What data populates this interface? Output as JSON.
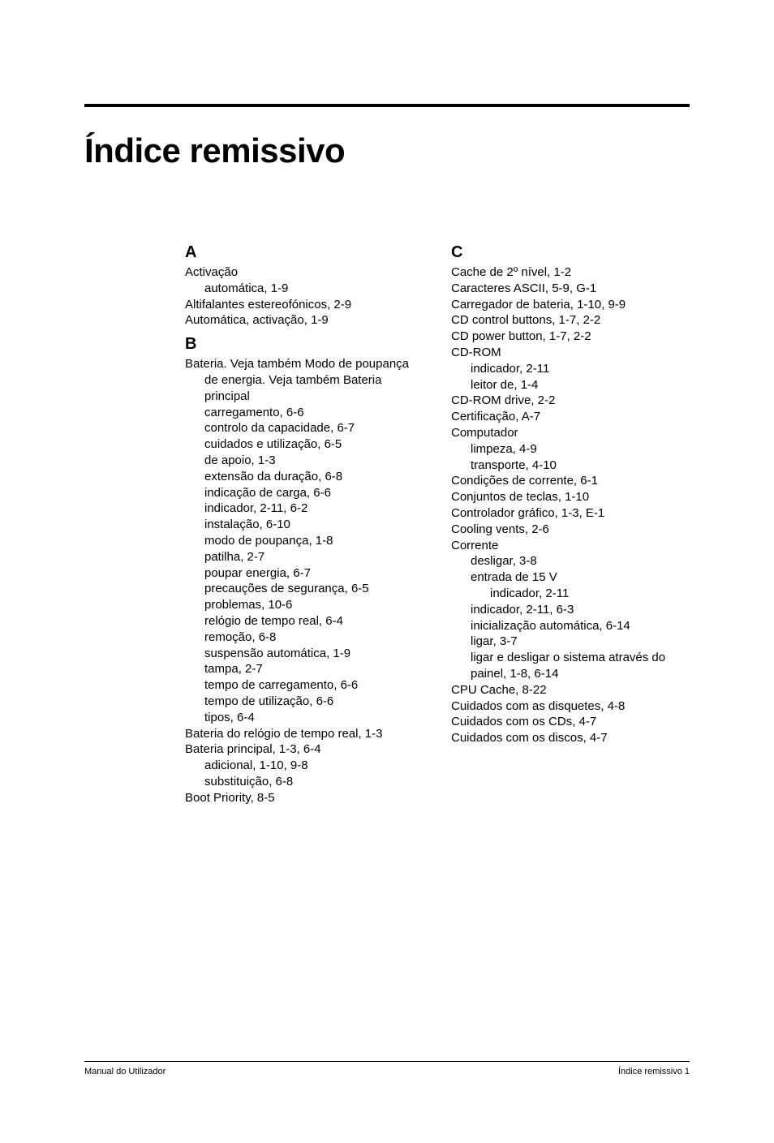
{
  "title": "Índice remissivo",
  "footer": {
    "left": "Manual do Utilizador",
    "right": "Índice remissivo 1"
  },
  "columns": {
    "left": [
      {
        "type": "letter",
        "text": "A"
      },
      {
        "type": "entry",
        "text": "Activação"
      },
      {
        "type": "sub",
        "text": "automática, 1-9"
      },
      {
        "type": "entry",
        "text": "Altifalantes estereofónicos, 2-9"
      },
      {
        "type": "entry",
        "text": "Automática, activação, 1-9"
      },
      {
        "type": "letter",
        "class": "tight-top",
        "text": "B"
      },
      {
        "type": "entry",
        "text": "Bateria. Veja também Modo de poupança de energia. Veja também Bateria principal"
      },
      {
        "type": "sub",
        "text": "carregamento, 6-6"
      },
      {
        "type": "sub",
        "text": "controlo da capacidade, 6-7"
      },
      {
        "type": "sub",
        "text": "cuidados e utilização, 6-5"
      },
      {
        "type": "sub",
        "text": "de apoio, 1-3"
      },
      {
        "type": "sub",
        "text": "extensão da duração, 6-8"
      },
      {
        "type": "sub",
        "text": "indicação de carga, 6-6"
      },
      {
        "type": "sub",
        "text": "indicador, 2-11, 6-2"
      },
      {
        "type": "sub",
        "text": "instalação, 6-10"
      },
      {
        "type": "sub",
        "text": "modo de poupança, 1-8"
      },
      {
        "type": "sub",
        "text": "patilha, 2-7"
      },
      {
        "type": "sub",
        "text": "poupar energia, 6-7"
      },
      {
        "type": "sub",
        "text": "precauções de segurança, 6-5"
      },
      {
        "type": "sub",
        "text": "problemas, 10-6"
      },
      {
        "type": "sub",
        "text": "relógio de tempo real, 6-4"
      },
      {
        "type": "sub",
        "text": "remoção, 6-8"
      },
      {
        "type": "sub",
        "text": "suspensão automática, 1-9"
      },
      {
        "type": "sub",
        "text": "tampa, 2-7"
      },
      {
        "type": "sub",
        "text": "tempo de carregamento, 6-6"
      },
      {
        "type": "sub",
        "text": "tempo de utilização, 6-6"
      },
      {
        "type": "sub",
        "text": "tipos, 6-4"
      },
      {
        "type": "entry",
        "text": "Bateria do relógio de tempo real, 1-3"
      },
      {
        "type": "entry",
        "text": "Bateria principal, 1-3, 6-4"
      },
      {
        "type": "sub",
        "text": "adicional, 1-10, 9-8"
      },
      {
        "type": "sub",
        "text": "substituição, 6-8"
      },
      {
        "type": "entry",
        "text": "Boot Priority, 8-5"
      }
    ],
    "right": [
      {
        "type": "letter",
        "text": "C"
      },
      {
        "type": "entry",
        "text": "Cache de 2º nível, 1-2"
      },
      {
        "type": "entry",
        "text": "Caracteres ASCII, 5-9, G-1"
      },
      {
        "type": "entry",
        "text": "Carregador de bateria, 1-10, 9-9"
      },
      {
        "type": "entry",
        "text": "CD control buttons, 1-7, 2-2"
      },
      {
        "type": "entry",
        "text": "CD power button, 1-7, 2-2"
      },
      {
        "type": "entry",
        "text": "CD-ROM"
      },
      {
        "type": "sub",
        "text": "indicador, 2-11"
      },
      {
        "type": "sub",
        "text": "leitor de, 1-4"
      },
      {
        "type": "entry",
        "text": "CD-ROM drive, 2-2"
      },
      {
        "type": "entry",
        "text": "Certificação, A-7"
      },
      {
        "type": "entry",
        "text": "Computador"
      },
      {
        "type": "sub",
        "text": "limpeza, 4-9"
      },
      {
        "type": "sub",
        "text": "transporte, 4-10"
      },
      {
        "type": "entry",
        "text": "Condições de corrente, 6-1"
      },
      {
        "type": "entry",
        "text": "Conjuntos de teclas, 1-10"
      },
      {
        "type": "entry",
        "text": "Controlador gráfico, 1-3, E-1"
      },
      {
        "type": "entry",
        "text": "Cooling vents, 2-6"
      },
      {
        "type": "entry",
        "text": "Corrente"
      },
      {
        "type": "sub",
        "text": "desligar, 3-8"
      },
      {
        "type": "sub",
        "text": "entrada de 15 V"
      },
      {
        "type": "subsub",
        "text": "indicador, 2-11"
      },
      {
        "type": "sub",
        "text": "indicador, 2-11, 6-3"
      },
      {
        "type": "sub",
        "text": "inicialização automática, 6-14"
      },
      {
        "type": "sub",
        "text": "ligar, 3-7"
      },
      {
        "type": "sub",
        "text": "ligar e desligar o sistema através do painel, 1-8, 6-14"
      },
      {
        "type": "entry",
        "text": "CPU Cache, 8-22"
      },
      {
        "type": "entry",
        "text": "Cuidados com as disquetes, 4-8"
      },
      {
        "type": "entry",
        "text": "Cuidados com os CDs, 4-7"
      },
      {
        "type": "entry",
        "text": "Cuidados com os discos, 4-7"
      }
    ]
  }
}
